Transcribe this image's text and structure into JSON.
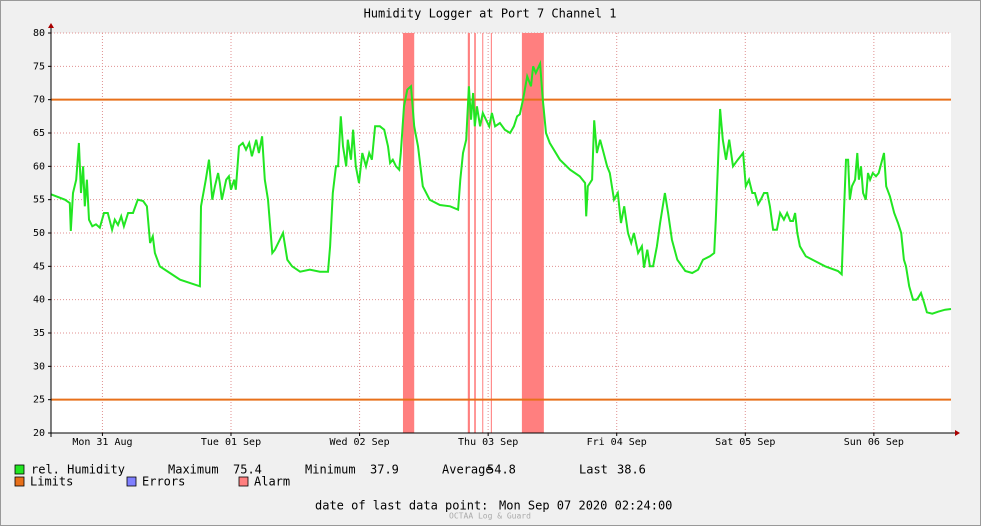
{
  "chart_data": {
    "type": "line",
    "title": "Humidity Logger at Port 7 Channel 1",
    "xlim": [
      2.4,
      170.4
    ],
    "xticks": [
      {
        "value": 12,
        "label": "Mon 31 Aug"
      },
      {
        "value": 36,
        "label": "Tue 01 Sep"
      },
      {
        "value": 60,
        "label": "Wed 02 Sep"
      },
      {
        "value": 84,
        "label": "Thu 03 Sep"
      },
      {
        "value": 108,
        "label": "Fri 04 Sep"
      },
      {
        "value": 132,
        "label": "Sat 05 Sep"
      },
      {
        "value": 156,
        "label": "Sun 06 Sep"
      }
    ],
    "ylim": [
      20,
      80
    ],
    "yticks": [
      20,
      25,
      30,
      35,
      40,
      45,
      50,
      55,
      60,
      65,
      70,
      75,
      80
    ],
    "grid": true,
    "x": [
      2.4,
      5.0,
      5.9,
      6.1,
      6.5,
      7.1,
      7.6,
      8.0,
      8.4,
      8.7,
      9.1,
      9.5,
      10.1,
      10.8,
      11.5,
      12.3,
      13.0,
      13.8,
      14.3,
      14.9,
      15.5,
      16.0,
      16.8,
      17.7,
      18.6,
      19.6,
      20.3,
      20.9,
      21.4,
      21.8,
      22.7,
      24.6,
      26.5,
      30.2,
      30.4,
      31.3,
      31.9,
      32.5,
      33.0,
      33.6,
      33.9,
      34.3,
      35.1,
      35.6,
      36.0,
      36.6,
      36.9,
      37.5,
      38.2,
      38.8,
      39.4,
      39.9,
      40.7,
      41.2,
      41.8,
      42.3,
      42.9,
      43.7,
      44.2,
      45.1,
      45.7,
      46.5,
      47.4,
      48.9,
      50.7,
      52.6,
      54.1,
      54.5,
      55.0,
      55.6,
      56.0,
      56.5,
      56.9,
      57.5,
      57.8,
      58.4,
      58.8,
      59.3,
      59.9,
      60.5,
      61.2,
      61.8,
      62.3,
      62.9,
      63.8,
      64.6,
      65.3,
      65.7,
      66.2,
      66.8,
      67.4,
      67.7,
      68.3,
      68.9,
      69.6,
      70.2,
      70.9,
      71.8,
      73.1,
      75.0,
      76.9,
      78.4,
      78.8,
      79.3,
      79.9,
      80.1,
      80.4,
      80.8,
      81.2,
      81.5,
      81.9,
      82.5,
      83.0,
      83.6,
      84.2,
      84.7,
      85.3,
      86.2,
      87.1,
      88.1,
      88.8,
      89.4,
      89.9,
      90.5,
      91.3,
      92.0,
      92.4,
      92.9,
      93.7,
      94.2,
      94.8,
      95.5,
      97.4,
      99.3,
      101.1,
      102.1,
      102.3,
      102.6,
      103.4,
      103.8,
      104.3,
      104.9,
      105.4,
      106.2,
      106.7,
      107.5,
      108.2,
      108.8,
      109.4,
      110.1,
      110.7,
      111.2,
      112.0,
      112.7,
      113.1,
      113.7,
      114.2,
      114.8,
      115.5,
      116.1,
      117.0,
      117.6,
      118.3,
      119.3,
      120.8,
      122.1,
      123.2,
      124.1,
      125.4,
      126.2,
      126.5,
      127.3,
      127.8,
      128.4,
      129.0,
      129.7,
      130.6,
      131.6,
      132.1,
      132.7,
      133.3,
      133.8,
      134.4,
      134.9,
      135.5,
      136.1,
      136.6,
      137.2,
      137.9,
      138.5,
      139.2,
      139.8,
      140.4,
      140.9,
      141.3,
      141.7,
      142.2,
      143.3,
      145.0,
      146.9,
      149.3,
      150.0,
      150.4,
      150.8,
      151.2,
      151.5,
      151.9,
      152.5,
      152.9,
      153.2,
      153.6,
      154.0,
      154.5,
      154.9,
      155.3,
      155.8,
      156.4,
      156.9,
      157.9,
      158.3,
      159.0,
      159.8,
      160.5,
      161.1,
      161.6,
      162.0,
      162.6,
      163.3,
      163.9,
      164.2,
      164.8,
      165.4,
      165.9,
      166.9,
      168.0,
      169.3,
      170.4
    ],
    "series": [
      {
        "name": "rel. Humidity",
        "color": "#22e622",
        "values": [
          55.8,
          55,
          54.5,
          50.3,
          56,
          58,
          63.5,
          56,
          60,
          54,
          58,
          52,
          51,
          51.3,
          50.8,
          53,
          53,
          50.5,
          52,
          51.2,
          52.5,
          51,
          53,
          53,
          55,
          54.8,
          54,
          48.5,
          49.5,
          47,
          45,
          44,
          43,
          42,
          54,
          58,
          61,
          55,
          57,
          59,
          57.5,
          55,
          58,
          58.5,
          56.5,
          58,
          56.5,
          63,
          63.5,
          62.5,
          63.5,
          61.5,
          64,
          62,
          64.5,
          58,
          55,
          47,
          47.5,
          49,
          50,
          46,
          45,
          44.2,
          44.5,
          44.2,
          44.2,
          48,
          56,
          60,
          60,
          67.5,
          63,
          60,
          64,
          61,
          65.5,
          60,
          57.5,
          62,
          60,
          62,
          61,
          66,
          66,
          65.5,
          63,
          60.5,
          61,
          60,
          59.5,
          62,
          69,
          71.5,
          72,
          66,
          63,
          57,
          55,
          54.2,
          54,
          53.5,
          58,
          62,
          64,
          67,
          72,
          67,
          71,
          66,
          69,
          66,
          68,
          67,
          66,
          68,
          66,
          66.5,
          65.5,
          65,
          66,
          67.5,
          67.8,
          70,
          73.5,
          72,
          75,
          74,
          75.4,
          70,
          65,
          63.5,
          61,
          59.5,
          58.5,
          57.5,
          52.5,
          57,
          58,
          66.9,
          62,
          64,
          62.5,
          60,
          59,
          55,
          56,
          51.5,
          54,
          50,
          48.5,
          50,
          47,
          48,
          44.8,
          47.5,
          45,
          45,
          48,
          51.5,
          56,
          53,
          49,
          46,
          44.3,
          44,
          44.5,
          46,
          46.5,
          47,
          52,
          68.6,
          64,
          61,
          64,
          60,
          61,
          62,
          57,
          58,
          56,
          56,
          54.3,
          55,
          56,
          56,
          54,
          50.5,
          50.5,
          53,
          52,
          53,
          51.8,
          51.8,
          53,
          50,
          48,
          46.5,
          45.8,
          45,
          44.3,
          43.8,
          53,
          61,
          61,
          55,
          57,
          58,
          62,
          58,
          60,
          56,
          55,
          59,
          58,
          59,
          58.5,
          59,
          62,
          57,
          55.5,
          53,
          51.5,
          50,
          46,
          45,
          42,
          40,
          40,
          40.2,
          41,
          39.5,
          38.1,
          37.9,
          38.2,
          38.5,
          38.6
        ]
      }
    ],
    "limits": {
      "name": "Limits",
      "color": "#e8701a",
      "values": [
        70,
        25
      ]
    },
    "errors": {
      "name": "Errors",
      "color": "#7f7fff"
    },
    "alarm": {
      "name": "Alarm",
      "color": "#ff7f7f",
      "ranges": [
        [
          68.1,
          70.2
        ],
        [
          80.2,
          80.6
        ],
        [
          81.4,
          81.7
        ],
        [
          82.9,
          83.0
        ],
        [
          84.5,
          84.7
        ],
        [
          90.3,
          94.4
        ]
      ]
    },
    "stats": [
      {
        "label": "Maximum",
        "value": 75.4
      },
      {
        "label": "Minimum",
        "value": 37.9
      },
      {
        "label": "Average",
        "value": 54.8
      },
      {
        "label": "Last",
        "value": 38.6
      }
    ],
    "footer": {
      "label": "date of last data point:",
      "value": "Mon Sep 07 2020 02:24:00"
    },
    "credit": "OCTAA Log & Guard"
  }
}
